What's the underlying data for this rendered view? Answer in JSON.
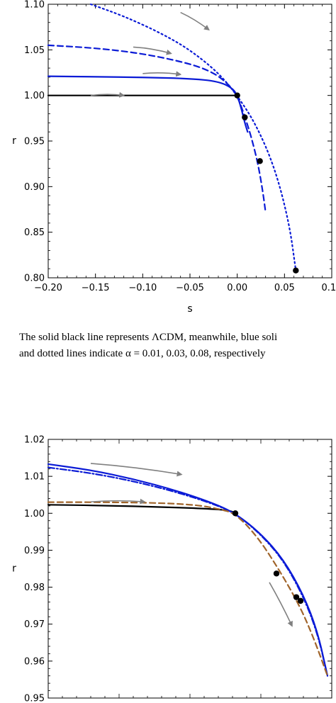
{
  "caption_lines": [
    "The solid black line represents ΛCDM, meanwhile, blue soli",
    "and dotted lines indicate α = 0.01, 0.03, 0.08, respectively"
  ],
  "chart_data": [
    {
      "type": "line",
      "xlabel": "s",
      "ylabel": "r",
      "xlim": [
        -0.2,
        0.1
      ],
      "ylim": [
        0.8,
        1.1
      ],
      "xticks": [
        "−0.20",
        "−0.15",
        "−0.10",
        "−0.05",
        "0.00",
        "0.05",
        "0.10"
      ],
      "xtick_values": [
        -0.2,
        -0.15,
        -0.1,
        -0.05,
        0.0,
        0.05,
        0.1
      ],
      "yticks": [
        "0.80",
        "0.85",
        "0.90",
        "0.95",
        "1.00",
        "1.05",
        "1.10"
      ],
      "ytick_values": [
        0.8,
        0.85,
        0.9,
        0.95,
        1.0,
        1.05,
        1.1
      ],
      "series": [
        {
          "style": "solid",
          "color": "#000000",
          "x": [
            -0.2,
            -0.15,
            -0.1,
            -0.05,
            -0.01,
            0.0
          ],
          "y": [
            1.0,
            1.0,
            1.0,
            1.0,
            1.0,
            1.0
          ]
        },
        {
          "style": "solid",
          "color": "#0b1bd6",
          "x": [
            -0.2,
            -0.15,
            -0.1,
            -0.05,
            -0.02,
            -0.005,
            0.0,
            0.004,
            0.008,
            0.011
          ],
          "y": [
            1.021,
            1.0205,
            1.0198,
            1.0185,
            1.0155,
            1.008,
            1.0,
            0.987,
            0.97,
            0.96
          ]
        },
        {
          "style": "dashed",
          "color": "#0b1bd6",
          "x": [
            -0.2,
            -0.15,
            -0.1,
            -0.05,
            -0.025,
            -0.01,
            0.0,
            0.008,
            0.015,
            0.022,
            0.027,
            0.03
          ],
          "y": [
            1.055,
            1.052,
            1.046,
            1.035,
            1.025,
            1.013,
            1.0,
            0.977,
            0.954,
            0.925,
            0.895,
            0.872
          ]
        },
        {
          "style": "dotted",
          "color": "#0b1bd6",
          "x": [
            -0.155,
            -0.12,
            -0.08,
            -0.05,
            -0.02,
            0.0,
            0.02,
            0.04,
            0.055,
            0.062
          ],
          "y": [
            1.1,
            1.087,
            1.068,
            1.05,
            1.025,
            1.0,
            0.968,
            0.92,
            0.86,
            0.808
          ]
        }
      ],
      "points": [
        {
          "x": 0.0,
          "y": 1.0
        },
        {
          "x": 0.008,
          "y": 0.976
        },
        {
          "x": 0.024,
          "y": 0.928
        },
        {
          "x": 0.062,
          "y": 0.808
        }
      ],
      "arrows": [
        {
          "color": "#808080",
          "x": [
            -0.155,
            -0.12
          ],
          "y": [
            1.0,
            1.0
          ]
        },
        {
          "color": "#808080",
          "x": [
            -0.1,
            -0.06
          ],
          "y": [
            1.024,
            1.023
          ]
        },
        {
          "color": "#808080",
          "x": [
            -0.11,
            -0.07
          ],
          "y": [
            1.053,
            1.046
          ]
        },
        {
          "color": "#808080",
          "x": [
            -0.06,
            -0.03
          ],
          "y": [
            1.091,
            1.072
          ]
        }
      ]
    },
    {
      "type": "line",
      "xlabel": "",
      "ylabel": "r",
      "xlim": [
        0,
        10
      ],
      "ylim": [
        0.95,
        1.02
      ],
      "xticks": [],
      "xtick_values": [],
      "yticks": [
        "0.95",
        "0.96",
        "0.97",
        "0.98",
        "0.99",
        "1.00",
        "1.01",
        "1.02"
      ],
      "ytick_values": [
        0.95,
        0.96,
        0.97,
        0.98,
        0.99,
        1.0,
        1.01,
        1.02
      ],
      "series": [
        {
          "style": "solid",
          "color": "#000000",
          "x": [
            0,
            2,
            4,
            5.5,
            6.4,
            6.6
          ],
          "y": [
            1.0023,
            1.0021,
            1.0017,
            1.0013,
            1.0008,
            1.0
          ]
        },
        {
          "style": "solid",
          "color": "#0b1bd6",
          "x": [
            0,
            1.5,
            3,
            4.5,
            5.8,
            6.6,
            7.5,
            8.3,
            9.0,
            9.5,
            9.85
          ],
          "y": [
            1.0133,
            1.0117,
            1.0093,
            1.0062,
            1.0028,
            1.0,
            0.9945,
            0.9875,
            0.978,
            0.968,
            0.956
          ]
        },
        {
          "style": "dashdot",
          "color": "#0b1bd6",
          "x": [
            0,
            1.5,
            3,
            4.5,
            5.8,
            6.6,
            7.5,
            8.3,
            9.0,
            9.5,
            9.85
          ],
          "y": [
            1.0124,
            1.0109,
            1.0087,
            1.0058,
            1.0026,
            1.0,
            0.9943,
            0.9872,
            0.9775,
            0.9675,
            0.956
          ]
        },
        {
          "style": "dashed",
          "color": "#a0642a",
          "x": [
            0,
            2,
            4,
            5.3,
            6.0,
            6.6,
            7.4,
            8.2,
            8.9,
            9.4,
            9.85
          ],
          "y": [
            1.003,
            1.003,
            1.0028,
            1.0022,
            1.0012,
            1.0,
            0.9935,
            0.984,
            0.9745,
            0.9655,
            0.956
          ]
        }
      ],
      "points": [
        {
          "x": 6.6,
          "y": 1.0
        },
        {
          "x": 8.05,
          "y": 0.9837
        },
        {
          "x": 8.75,
          "y": 0.9773
        },
        {
          "x": 8.9,
          "y": 0.9763
        }
      ],
      "arrows": [
        {
          "color": "#808080",
          "x": [
            1.5,
            4.7
          ],
          "y": [
            1.0135,
            1.0105
          ]
        },
        {
          "color": "#808080",
          "x": [
            1.5,
            3.4
          ],
          "y": [
            1.0031,
            1.0031
          ]
        },
        {
          "color": "#808080",
          "x": [
            7.8,
            8.6
          ],
          "y": [
            0.9813,
            0.9695
          ]
        }
      ]
    }
  ]
}
